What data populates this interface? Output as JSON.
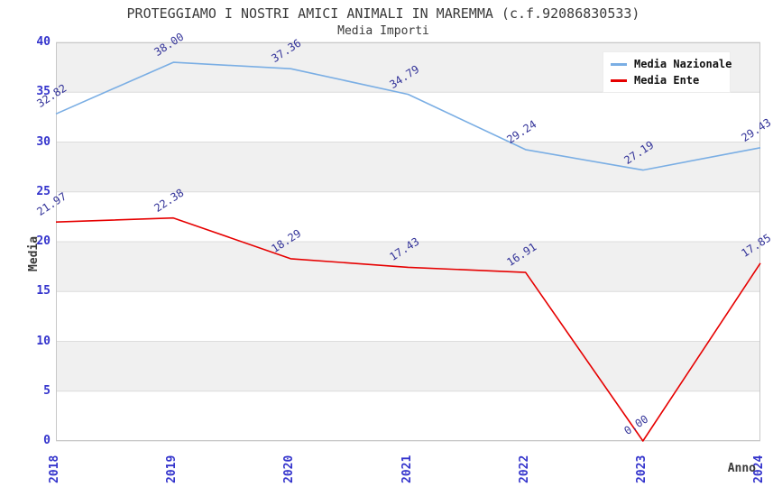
{
  "title": "PROTEGGIAMO I NOSTRI AMICI ANIMALI IN MAREMMA (c.f.92086830533)",
  "subtitle": "Media Importi",
  "legend": {
    "items": [
      "Media Nazionale",
      "Media Ente"
    ]
  },
  "colors": {
    "nazionale_line": "#7aaee4",
    "ente_line": "#e60000",
    "tick_label": "#3333cc",
    "data_label": "#333399",
    "title_text": "#3a3a3a",
    "band_fill": "#f0f0f0",
    "grid_line": "#dcdcdc",
    "spine": "#c8c8c8",
    "background": "#ffffff",
    "legend_text": "#111111"
  },
  "chart_data": {
    "type": "line",
    "title": "PROTEGGIAMO I NOSTRI AMICI ANIMALI IN MAREMMA (c.f.92086830533)",
    "subtitle": "Media Importi",
    "xlabel": "Anno",
    "ylabel": "Media",
    "x": [
      "2018",
      "2019",
      "2020",
      "2021",
      "2022",
      "2023",
      "2024"
    ],
    "series": [
      {
        "name": "Media Nazionale",
        "color": "#7aaee4",
        "values": [
          32.82,
          38.0,
          37.36,
          34.79,
          29.24,
          27.19,
          29.43
        ]
      },
      {
        "name": "Media Ente",
        "color": "#e60000",
        "values": [
          21.97,
          22.38,
          18.29,
          17.43,
          16.91,
          0.0,
          17.85
        ]
      }
    ],
    "ylim": [
      0,
      40
    ],
    "ytick_step": 5,
    "grid": "horizontal-bands-alternating",
    "legend_position": "top-right",
    "point_label_format": "2-decimals",
    "point_label_rotation_deg": -33,
    "xtick_rotation_deg": -90
  }
}
